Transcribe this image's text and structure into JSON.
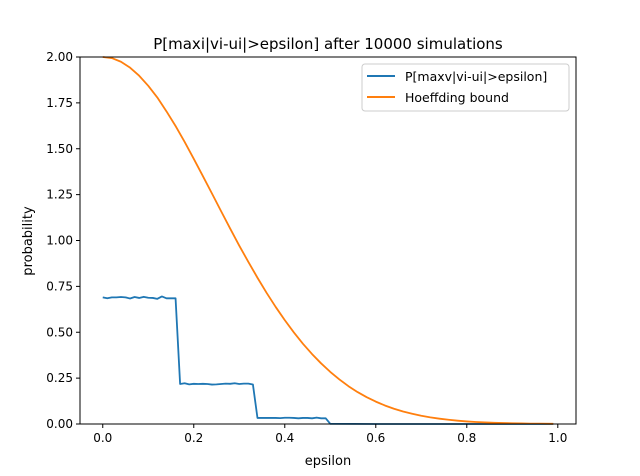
{
  "chart_data": {
    "type": "line",
    "title": "P[maxi|vi-ui|>epsilon] after 10000 simulations",
    "xlabel": "epsilon",
    "ylabel": "probability",
    "xlim": [
      -0.05,
      1.04
    ],
    "ylim": [
      0.0,
      2.0
    ],
    "xticks": [
      "0.0",
      "0.2",
      "0.4",
      "0.6",
      "0.8",
      "1.0"
    ],
    "xtick_values": [
      0.0,
      0.2,
      0.4,
      0.6,
      0.8,
      1.0
    ],
    "yticks": [
      "0.00",
      "0.25",
      "0.50",
      "0.75",
      "1.00",
      "1.25",
      "1.50",
      "1.75",
      "2.00"
    ],
    "ytick_values": [
      0.0,
      0.25,
      0.5,
      0.75,
      1.0,
      1.25,
      1.5,
      1.75,
      2.0
    ],
    "grid": false,
    "legend_position": "top-right",
    "series": [
      {
        "name": "P[maxv|vi-ui|>epsilon]",
        "color": "#1f77b4",
        "x": [
          0.0,
          0.01,
          0.02,
          0.03,
          0.04,
          0.05,
          0.06,
          0.07,
          0.08,
          0.09,
          0.1,
          0.11,
          0.12,
          0.13,
          0.14,
          0.15,
          0.16,
          0.17,
          0.18,
          0.19,
          0.2,
          0.21,
          0.22,
          0.23,
          0.24,
          0.25,
          0.26,
          0.27,
          0.28,
          0.29,
          0.3,
          0.31,
          0.32,
          0.33,
          0.34,
          0.35,
          0.36,
          0.37,
          0.38,
          0.39,
          0.4,
          0.41,
          0.42,
          0.43,
          0.44,
          0.45,
          0.46,
          0.47,
          0.48,
          0.49,
          0.5,
          0.6,
          0.7,
          0.8,
          0.9,
          0.99
        ],
        "y": [
          0.69,
          0.685,
          0.69,
          0.69,
          0.692,
          0.69,
          0.684,
          0.692,
          0.687,
          0.693,
          0.688,
          0.687,
          0.682,
          0.695,
          0.685,
          0.685,
          0.685,
          0.218,
          0.222,
          0.216,
          0.219,
          0.218,
          0.219,
          0.218,
          0.215,
          0.216,
          0.218,
          0.22,
          0.219,
          0.222,
          0.218,
          0.22,
          0.22,
          0.215,
          0.033,
          0.033,
          0.033,
          0.033,
          0.033,
          0.032,
          0.034,
          0.034,
          0.033,
          0.031,
          0.033,
          0.033,
          0.031,
          0.035,
          0.031,
          0.031,
          0.001,
          0.0,
          0.0,
          0.0,
          0.0,
          0.0
        ]
      },
      {
        "name": "Hoeffding bound",
        "color": "#ff7f0e",
        "x": [
          0.0,
          0.02,
          0.04,
          0.06,
          0.08,
          0.1,
          0.12,
          0.14,
          0.16,
          0.18,
          0.2,
          0.22,
          0.24,
          0.26,
          0.28,
          0.3,
          0.32,
          0.34,
          0.36,
          0.38,
          0.4,
          0.42,
          0.44,
          0.46,
          0.48,
          0.5,
          0.52,
          0.54,
          0.56,
          0.58,
          0.6,
          0.62,
          0.64,
          0.66,
          0.68,
          0.7,
          0.72,
          0.74,
          0.76,
          0.78,
          0.8,
          0.82,
          0.84,
          0.86,
          0.88,
          0.9,
          0.92,
          0.94,
          0.96,
          0.99
        ],
        "y": [
          2.0,
          1.994,
          1.974,
          1.942,
          1.898,
          1.843,
          1.779,
          1.704,
          1.624,
          1.537,
          1.445,
          1.351,
          1.256,
          1.16,
          1.065,
          0.972,
          0.883,
          0.797,
          0.715,
          0.638,
          0.566,
          0.499,
          0.437,
          0.381,
          0.33,
          0.284,
          0.243,
          0.206,
          0.174,
          0.146,
          0.122,
          0.101,
          0.083,
          0.068,
          0.056,
          0.045,
          0.036,
          0.029,
          0.023,
          0.018,
          0.014,
          0.011,
          0.009,
          0.007,
          0.005,
          0.004,
          0.003,
          0.002,
          0.002,
          0.001
        ]
      }
    ]
  }
}
